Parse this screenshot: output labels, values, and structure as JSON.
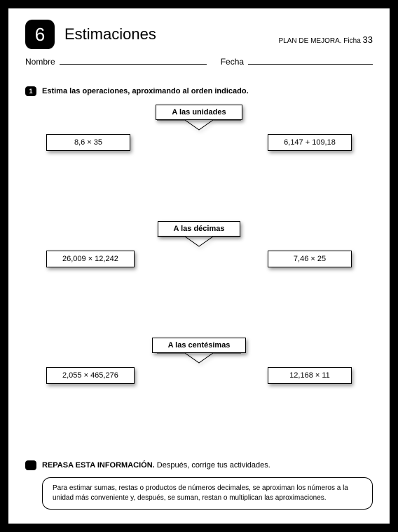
{
  "header": {
    "unit_number": "6",
    "title": "Estimaciones",
    "plan_label": "PLAN DE MEJORA. Ficha ",
    "plan_number": "33"
  },
  "fields": {
    "nombre_label": "Nombre",
    "fecha_label": "Fecha"
  },
  "exercise": {
    "number": "1",
    "instruction": "Estima las operaciones, aproximando al orden indicado."
  },
  "sections": [
    {
      "label": "A las unidades",
      "left_op": "8,6 × 35",
      "right_op": "6,147 + 109,18"
    },
    {
      "label": "A las décimas",
      "left_op": "26,009 × 12,242",
      "right_op": "7,46 × 25"
    },
    {
      "label": "A las centésimas",
      "left_op": "2,055 × 465,276",
      "right_op": "12,168 × 11"
    }
  ],
  "review": {
    "title_bold": "REPASA ESTA INFORMACIÓN.",
    "title_rest": " Después, corrige tus actividades.",
    "box_text": "Para estimar sumas, restas o productos de números decimales, se aproximan los números a la unidad más conveniente y, después, se suman, restan o multiplican las aproximaciones."
  },
  "colors": {
    "page_bg": "#ffffff",
    "border": "#000000",
    "text": "#000000",
    "badge_bg": "#000000",
    "badge_fg": "#ffffff"
  }
}
